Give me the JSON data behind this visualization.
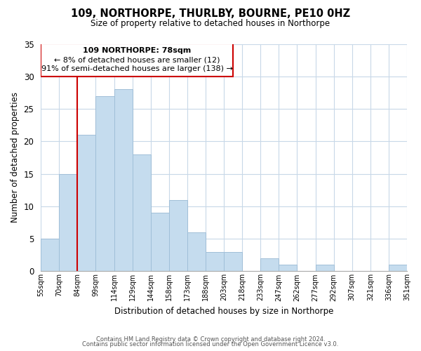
{
  "title": "109, NORTHORPE, THURLBY, BOURNE, PE10 0HZ",
  "subtitle": "Size of property relative to detached houses in Northorpe",
  "xlabel": "Distribution of detached houses by size in Northorpe",
  "ylabel": "Number of detached properties",
  "bar_color": "#c5dcee",
  "bar_edge_color": "#a0bfd8",
  "bin_labels": [
    "55sqm",
    "70sqm",
    "84sqm",
    "99sqm",
    "114sqm",
    "129sqm",
    "144sqm",
    "158sqm",
    "173sqm",
    "188sqm",
    "203sqm",
    "218sqm",
    "233sqm",
    "247sqm",
    "262sqm",
    "277sqm",
    "292sqm",
    "307sqm",
    "321sqm",
    "336sqm",
    "351sqm"
  ],
  "bar_heights": [
    5,
    15,
    21,
    27,
    28,
    18,
    9,
    11,
    6,
    3,
    3,
    0,
    2,
    1,
    0,
    1,
    0,
    0,
    0,
    1
  ],
  "ylim": [
    0,
    35
  ],
  "yticks": [
    0,
    5,
    10,
    15,
    20,
    25,
    30,
    35
  ],
  "marker_label_line1": "109 NORTHORPE: 78sqm",
  "marker_label_line2": "← 8% of detached houses are smaller (12)",
  "marker_label_line3": "91% of semi-detached houses are larger (138) →",
  "marker_color": "#cc0000",
  "footer_line1": "Contains HM Land Registry data © Crown copyright and database right 2024.",
  "footer_line2": "Contains public sector information licensed under the Open Government Licence v3.0.",
  "background_color": "#ffffff",
  "grid_color": "#c8d8e8"
}
